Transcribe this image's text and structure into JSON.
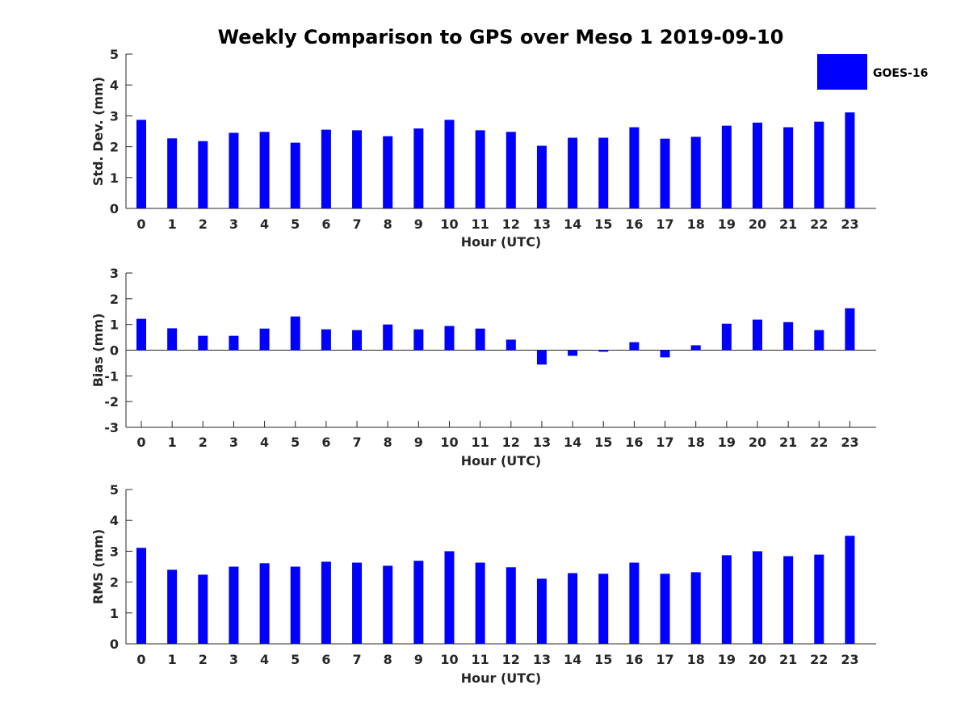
{
  "title": "Weekly Comparison to GPS over Meso 1 2019-09-10",
  "legend": {
    "label": "GOES-16",
    "color": "#0000ff"
  },
  "chart_data": [
    {
      "type": "bar",
      "name": "std-dev",
      "title": "Weekly Comparison to GPS over Meso 1 2019-09-10",
      "xlabel": "Hour (UTC)",
      "ylabel": "Std. Dev. (mm)",
      "categories": [
        "0",
        "1",
        "2",
        "3",
        "4",
        "5",
        "6",
        "7",
        "8",
        "9",
        "10",
        "11",
        "12",
        "13",
        "14",
        "15",
        "16",
        "17",
        "18",
        "19",
        "20",
        "21",
        "22",
        "23"
      ],
      "ylim": [
        0,
        5
      ],
      "yticks": [
        0,
        1,
        2,
        3,
        4,
        5
      ],
      "series": [
        {
          "name": "GOES-16",
          "values": [
            2.87,
            2.27,
            2.18,
            2.45,
            2.48,
            2.13,
            2.55,
            2.53,
            2.34,
            2.59,
            2.87,
            2.53,
            2.48,
            2.03,
            2.29,
            2.29,
            2.63,
            2.26,
            2.32,
            2.68,
            2.78,
            2.63,
            2.81,
            3.11
          ]
        }
      ]
    },
    {
      "type": "bar",
      "name": "bias",
      "xlabel": "Hour (UTC)",
      "ylabel": "Bias (mm)",
      "categories": [
        "0",
        "1",
        "2",
        "3",
        "4",
        "5",
        "6",
        "7",
        "8",
        "9",
        "10",
        "11",
        "12",
        "13",
        "14",
        "15",
        "16",
        "17",
        "18",
        "19",
        "20",
        "21",
        "22",
        "23"
      ],
      "ylim": [
        -3,
        3
      ],
      "yticks": [
        -3,
        -2,
        -1,
        0,
        1,
        2,
        3
      ],
      "series": [
        {
          "name": "GOES-16",
          "values": [
            1.22,
            0.85,
            0.56,
            0.56,
            0.84,
            1.31,
            0.81,
            0.78,
            1.0,
            0.81,
            0.94,
            0.84,
            0.41,
            -0.56,
            -0.22,
            -0.06,
            0.31,
            -0.28,
            0.19,
            1.03,
            1.19,
            1.09,
            0.78,
            1.63
          ]
        }
      ]
    },
    {
      "type": "bar",
      "name": "rms",
      "xlabel": "Hour (UTC)",
      "ylabel": "RMS (mm)",
      "categories": [
        "0",
        "1",
        "2",
        "3",
        "4",
        "5",
        "6",
        "7",
        "8",
        "9",
        "10",
        "11",
        "12",
        "13",
        "14",
        "15",
        "16",
        "17",
        "18",
        "19",
        "20",
        "21",
        "22",
        "23"
      ],
      "ylim": [
        0,
        5
      ],
      "yticks": [
        0,
        1,
        2,
        3,
        4,
        5
      ],
      "series": [
        {
          "name": "GOES-16",
          "values": [
            3.11,
            2.4,
            2.24,
            2.5,
            2.61,
            2.5,
            2.66,
            2.63,
            2.53,
            2.69,
            3.0,
            2.63,
            2.48,
            2.11,
            2.29,
            2.27,
            2.63,
            2.27,
            2.32,
            2.87,
            3.0,
            2.84,
            2.89,
            3.5
          ]
        }
      ]
    }
  ]
}
